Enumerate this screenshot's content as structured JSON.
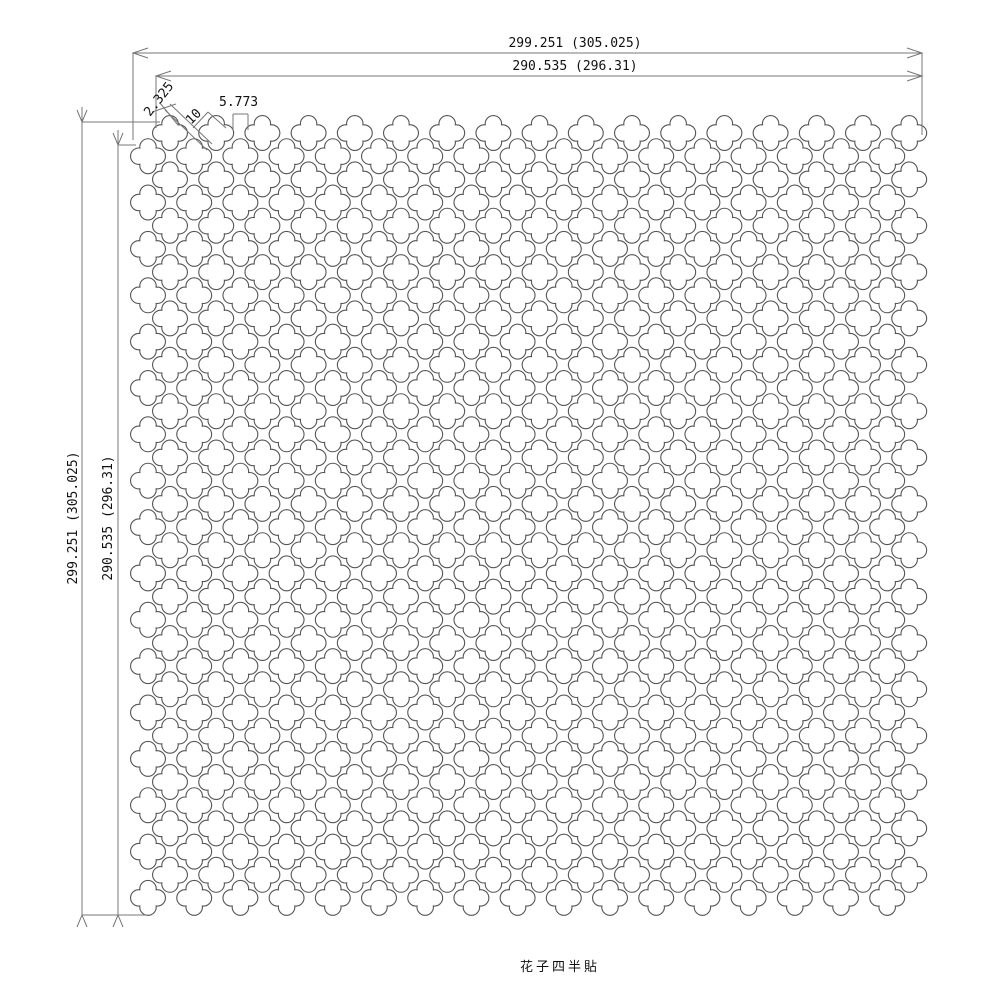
{
  "drawing": {
    "title": "花子四半貼",
    "dimensions": {
      "overall_width": "299.251 (305.025)",
      "inner_width": "290.535 (296.31)",
      "overall_height": "299.251 (305.025)",
      "inner_height": "290.535 (296.31)",
      "edge_offset": "2.325",
      "pitch": "10",
      "gap": "5.773"
    },
    "pattern": {
      "shape": "quatrefoil",
      "columns_per_row": 17,
      "rows": 34,
      "arrangement": "staggered"
    },
    "line_color": "#555555"
  }
}
